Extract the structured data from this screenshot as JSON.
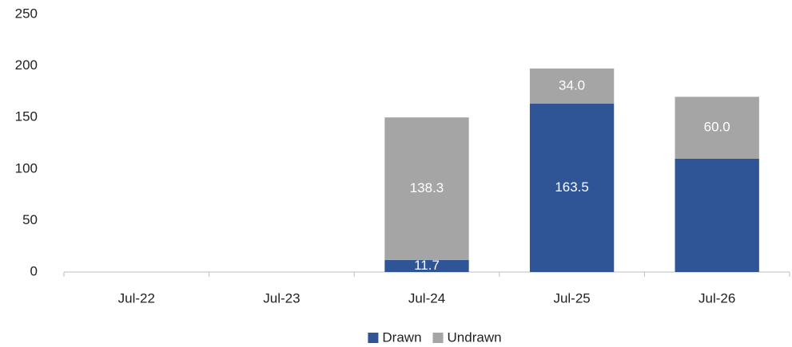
{
  "chart_data": {
    "type": "stacked-bar",
    "categories": [
      "Jul-22",
      "Jul-23",
      "Jul-24",
      "Jul-25",
      "Jul-26"
    ],
    "series": [
      {
        "name": "Drawn",
        "color": "#2f5597",
        "values": [
          null,
          null,
          11.7,
          163.5,
          110
        ],
        "value_labels": [
          null,
          null,
          "11.7",
          "163.5",
          null
        ]
      },
      {
        "name": "Undrawn",
        "color": "#a5a5a5",
        "values": [
          null,
          null,
          138.3,
          34,
          60
        ],
        "value_labels": [
          null,
          null,
          "138.3",
          "34.0",
          "60.0"
        ]
      }
    ],
    "ylim": [
      0,
      250
    ],
    "yticks": [
      0,
      50,
      100,
      150,
      200,
      250
    ],
    "grid": false,
    "legend": "bottom"
  }
}
